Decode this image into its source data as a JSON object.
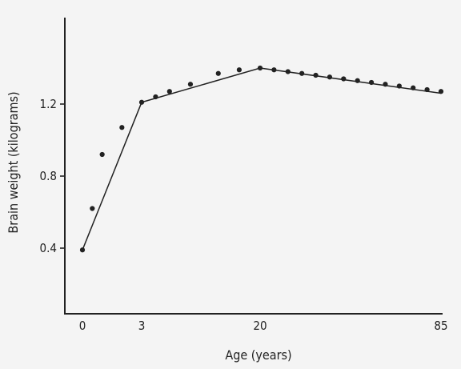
{
  "chart_data": {
    "type": "line",
    "xlabel": "Age (years)",
    "ylabel": "Brain weight (kilograms)",
    "x_ticks": [
      "0",
      "3",
      "20",
      "85"
    ],
    "y_ticks": [
      "0.4",
      "0.8",
      "1.2"
    ],
    "ylim": [
      0.0,
      1.5
    ],
    "grid": false,
    "legend": "none",
    "points": [
      {
        "x": 0,
        "y": 0.39
      },
      {
        "x": 0.5,
        "y": 0.62
      },
      {
        "x": 1,
        "y": 0.92
      },
      {
        "x": 2,
        "y": 1.07
      },
      {
        "x": 3,
        "y": 1.21
      },
      {
        "x": 5,
        "y": 1.24
      },
      {
        "x": 7,
        "y": 1.27
      },
      {
        "x": 10,
        "y": 1.31
      },
      {
        "x": 14,
        "y": 1.37
      },
      {
        "x": 17,
        "y": 1.39
      },
      {
        "x": 20,
        "y": 1.4
      },
      {
        "x": 25,
        "y": 1.39
      },
      {
        "x": 30,
        "y": 1.38
      },
      {
        "x": 35,
        "y": 1.37
      },
      {
        "x": 40,
        "y": 1.36
      },
      {
        "x": 45,
        "y": 1.35
      },
      {
        "x": 50,
        "y": 1.34
      },
      {
        "x": 55,
        "y": 1.33
      },
      {
        "x": 60,
        "y": 1.32
      },
      {
        "x": 65,
        "y": 1.31
      },
      {
        "x": 70,
        "y": 1.3
      },
      {
        "x": 75,
        "y": 1.29
      },
      {
        "x": 80,
        "y": 1.28
      },
      {
        "x": 85,
        "y": 1.27
      }
    ],
    "fit_line": [
      {
        "x": 0,
        "y": 0.39
      },
      {
        "x": 3,
        "y": 1.21
      },
      {
        "x": 20,
        "y": 1.4
      },
      {
        "x": 85,
        "y": 1.26
      }
    ]
  }
}
